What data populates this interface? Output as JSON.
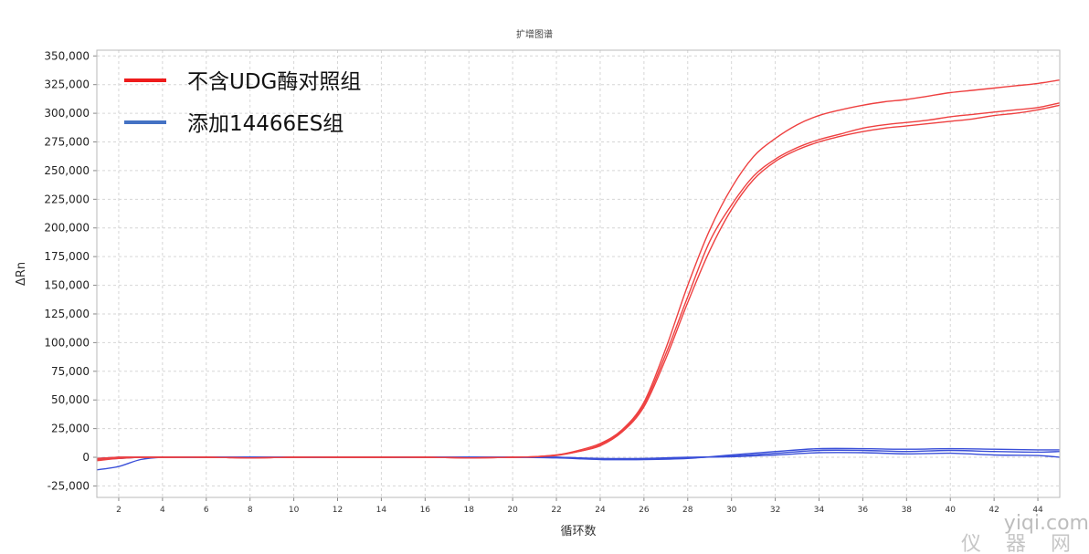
{
  "chart_data": {
    "type": "line",
    "title": "扩增图谱",
    "xlabel": "循环数",
    "ylabel": "ΔRn",
    "xlim": [
      1,
      45
    ],
    "ylim": [
      -35000,
      355000
    ],
    "x_ticks": [
      2,
      4,
      6,
      8,
      10,
      12,
      14,
      16,
      18,
      20,
      22,
      24,
      26,
      28,
      30,
      32,
      34,
      36,
      38,
      40,
      42,
      44
    ],
    "y_ticks": [
      -25000,
      0,
      25000,
      50000,
      75000,
      100000,
      125000,
      150000,
      175000,
      200000,
      225000,
      250000,
      275000,
      300000,
      325000,
      350000
    ],
    "y_tick_labels": [
      "-25,000",
      "0",
      "25,000",
      "50,000",
      "75,000",
      "100,000",
      "125,000",
      "150,000",
      "175,000",
      "200,000",
      "225,000",
      "250,000",
      "275,000",
      "300,000",
      "325,000",
      "350,000"
    ],
    "grid": true,
    "legend_position": "top-left",
    "legend": [
      {
        "label": "不含UDG酶对照组",
        "color": "#ee1c1c"
      },
      {
        "label": "添加14466ES组",
        "color": "#4472c4"
      }
    ],
    "series": [
      {
        "group": 0,
        "color": "#ee4040",
        "x": [
          1,
          2,
          3,
          4,
          6,
          8,
          10,
          12,
          14,
          16,
          18,
          20,
          21,
          22,
          23,
          24,
          25,
          26,
          27,
          28,
          29,
          30,
          31,
          32,
          33,
          34,
          35,
          36,
          37,
          38,
          39,
          40,
          41,
          42,
          43,
          44,
          45
        ],
        "values": [
          -1000,
          0,
          0,
          0,
          0,
          -500,
          0,
          0,
          0,
          0,
          -500,
          0,
          500,
          2000,
          6000,
          12000,
          24000,
          48000,
          95000,
          150000,
          198000,
          235000,
          262000,
          278000,
          290000,
          298000,
          303000,
          307000,
          310000,
          312000,
          315000,
          318000,
          320000,
          322000,
          324000,
          326000,
          329000
        ]
      },
      {
        "group": 0,
        "color": "#ee4040",
        "x": [
          1,
          2,
          3,
          4,
          6,
          8,
          10,
          12,
          14,
          16,
          18,
          20,
          21,
          22,
          23,
          24,
          25,
          26,
          27,
          28,
          29,
          30,
          31,
          32,
          33,
          34,
          35,
          36,
          37,
          38,
          39,
          40,
          41,
          42,
          43,
          44,
          45
        ],
        "values": [
          -2000,
          0,
          0,
          0,
          0,
          -500,
          0,
          0,
          0,
          0,
          -500,
          0,
          500,
          2000,
          5000,
          11000,
          23000,
          46000,
          90000,
          140000,
          188000,
          220000,
          245000,
          260000,
          270000,
          277000,
          282000,
          287000,
          290000,
          292000,
          294000,
          297000,
          299000,
          301000,
          303000,
          305000,
          309000
        ]
      },
      {
        "group": 0,
        "color": "#ee4040",
        "x": [
          1,
          2,
          3,
          4,
          6,
          8,
          10,
          12,
          14,
          16,
          18,
          20,
          21,
          22,
          23,
          24,
          25,
          26,
          27,
          28,
          29,
          30,
          31,
          32,
          33,
          34,
          35,
          36,
          37,
          38,
          39,
          40,
          41,
          42,
          43,
          44,
          45
        ],
        "values": [
          -3000,
          -1000,
          0,
          0,
          0,
          -500,
          0,
          0,
          0,
          0,
          -500,
          0,
          500,
          1500,
          5000,
          10000,
          22000,
          44000,
          86000,
          135000,
          180000,
          216000,
          242000,
          258000,
          268000,
          275000,
          280000,
          284000,
          287000,
          289000,
          291000,
          293000,
          295000,
          298000,
          300000,
          303000,
          307000
        ]
      },
      {
        "group": 1,
        "color": "#3a4fd8",
        "x": [
          1,
          2,
          3,
          4,
          6,
          8,
          10,
          12,
          14,
          16,
          18,
          20,
          22,
          24,
          26,
          28,
          30,
          32,
          34,
          36,
          38,
          40,
          42,
          44,
          45
        ],
        "values": [
          -11000,
          -8000,
          -2000,
          0,
          0,
          0,
          0,
          0,
          0,
          0,
          0,
          0,
          -500,
          -2000,
          -2000,
          -1000,
          2000,
          5000,
          7500,
          7500,
          7000,
          7500,
          7000,
          6500,
          6500
        ]
      },
      {
        "group": 1,
        "color": "#3a4fd8",
        "x": [
          1,
          2,
          3,
          4,
          6,
          8,
          10,
          12,
          14,
          16,
          18,
          20,
          22,
          24,
          26,
          28,
          30,
          32,
          34,
          36,
          38,
          40,
          42,
          44,
          45
        ],
        "values": [
          -2000,
          -1000,
          0,
          0,
          0,
          0,
          0,
          0,
          0,
          0,
          0,
          0,
          0,
          -1500,
          -1500,
          -500,
          1000,
          3500,
          6000,
          6000,
          5000,
          6000,
          5000,
          4500,
          5000
        ]
      },
      {
        "group": 1,
        "color": "#3a4fd8",
        "x": [
          1,
          2,
          3,
          4,
          6,
          8,
          10,
          12,
          14,
          16,
          18,
          20,
          22,
          24,
          26,
          28,
          30,
          32,
          34,
          36,
          38,
          40,
          42,
          44,
          45
        ],
        "values": [
          -1000,
          0,
          0,
          0,
          0,
          0,
          0,
          0,
          0,
          0,
          0,
          0,
          0,
          -1000,
          -1000,
          0,
          500,
          2000,
          4000,
          4000,
          3000,
          3500,
          2000,
          1500,
          0
        ]
      }
    ]
  },
  "watermark": {
    "line1": "yiqi.com",
    "line2": "仪 器 网"
  }
}
